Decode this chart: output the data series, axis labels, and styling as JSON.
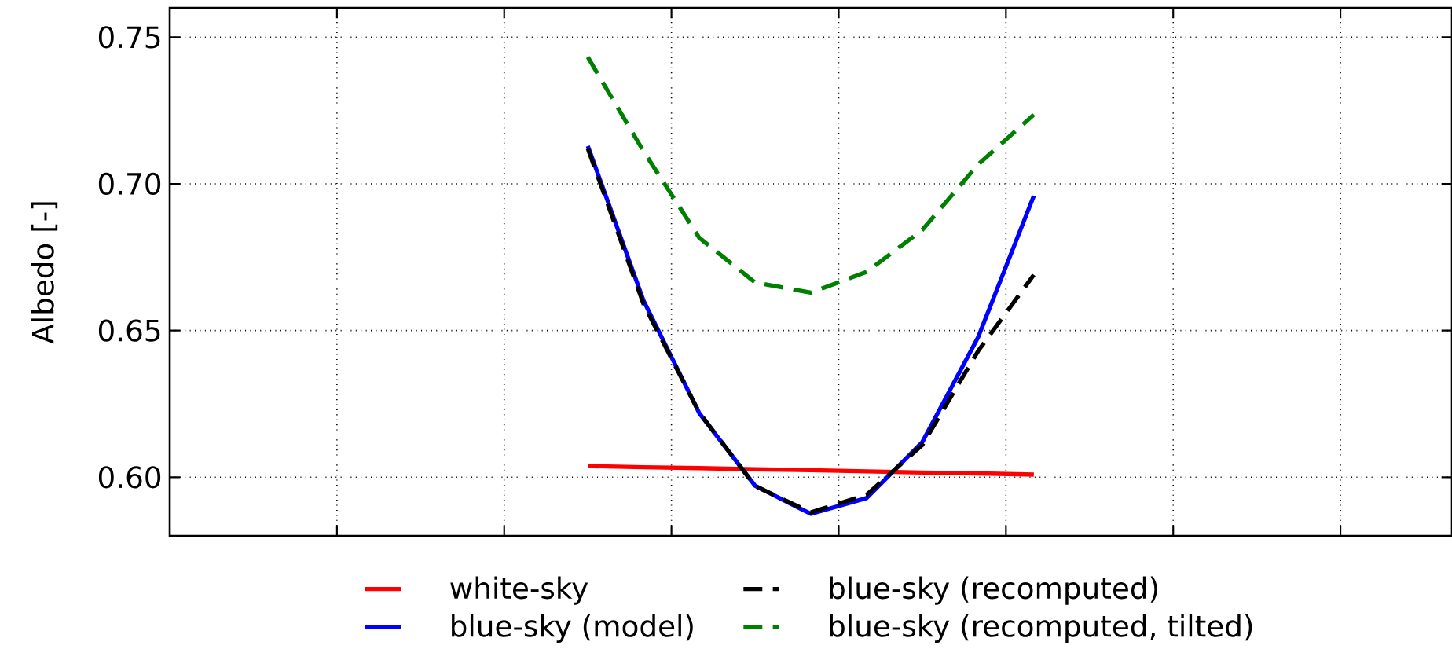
{
  "chart_data": {
    "type": "line",
    "ylabel": "Albedo [-]",
    "categories": [
      null,
      null,
      null,
      null,
      null,
      null,
      null,
      null,
      null,
      null,
      null,
      null,
      null,
      null,
      null,
      null,
      null,
      null,
      null,
      null,
      null,
      null,
      null
    ],
    "series": [
      {
        "name": "white-sky",
        "color": "#ff0000",
        "line_style": "solid",
        "values": [
          null,
          null,
          null,
          null,
          null,
          null,
          null,
          0.6038,
          0.6034,
          0.6031,
          0.6027,
          0.6024,
          0.602,
          0.6016,
          0.6013,
          0.6009,
          null,
          null,
          null,
          null,
          null,
          null,
          null
        ]
      },
      {
        "name": "blue-sky (model)",
        "color": "#0000ff",
        "line_style": "solid",
        "values": [
          null,
          null,
          null,
          null,
          null,
          null,
          null,
          0.7129,
          0.6602,
          0.6218,
          0.5971,
          0.5875,
          0.5929,
          0.612,
          0.6477,
          0.6959,
          null,
          null,
          null,
          null,
          null,
          null,
          null
        ]
      },
      {
        "name": "blue-sky (recomputed)",
        "color": "#000000",
        "line_style": "dashed",
        "values": [
          null,
          null,
          null,
          null,
          null,
          null,
          null,
          0.712,
          0.659,
          0.622,
          0.597,
          0.588,
          0.594,
          0.611,
          0.643,
          0.669,
          null,
          null,
          null,
          null,
          null,
          null,
          null
        ]
      },
      {
        "name": "blue-sky (recomputed, tilted)",
        "color": "#008000",
        "line_style": "dashed",
        "values": [
          null,
          null,
          null,
          null,
          null,
          null,
          null,
          0.7432,
          0.7111,
          0.6816,
          0.6664,
          0.6629,
          0.67,
          0.6843,
          0.7066,
          0.7236,
          null,
          null,
          null,
          null,
          null,
          null,
          null
        ]
      }
    ],
    "ylim": [
      0.58,
      0.76
    ],
    "yticks": [
      {
        "value": 0.6,
        "label": "0.60"
      },
      {
        "value": 0.65,
        "label": "0.65"
      },
      {
        "value": 0.7,
        "label": "0.70"
      },
      {
        "value": 0.75,
        "label": "0.75"
      }
    ],
    "grid": true,
    "legend": "bottom",
    "marker": "none"
  }
}
